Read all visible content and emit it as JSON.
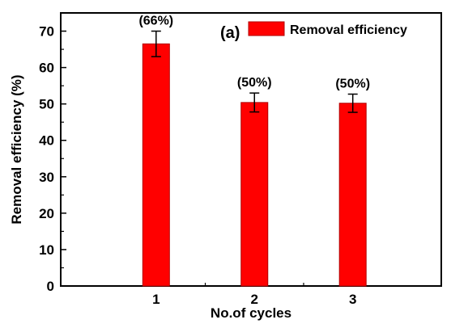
{
  "chart_data": {
    "type": "bar",
    "panel_label": "(a)",
    "categories": [
      "1",
      "2",
      "3"
    ],
    "series": [
      {
        "name": "Removal efficiency",
        "values": [
          66.5,
          50.4,
          50.2
        ],
        "errors": [
          3.5,
          2.6,
          2.5
        ],
        "data_labels": [
          "(66%)",
          "(50%)",
          "(50%)"
        ]
      }
    ],
    "xlabel": "No.of cycles",
    "ylabel": "Removal efficiency (%)",
    "ylim": [
      0,
      75
    ],
    "yticks": [
      "0",
      "10",
      "20",
      "30",
      "40",
      "50",
      "60",
      "70"
    ],
    "legend_position": "top-right",
    "grid": false,
    "colors": {
      "bar": "#ff0000",
      "bar_edge": "#b00000"
    }
  }
}
